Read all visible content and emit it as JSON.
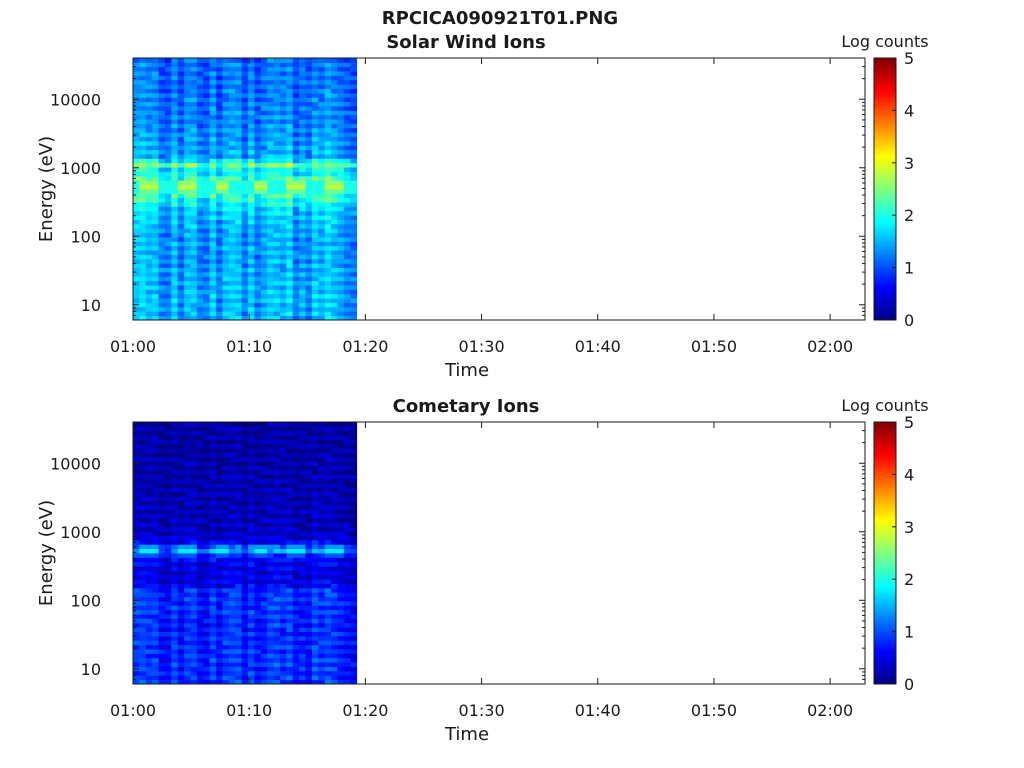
{
  "figure": {
    "title": "RPCICA090921T01.PNG"
  },
  "chart_data": [
    {
      "type": "heatmap",
      "title": "Solar Wind Ions",
      "xlabel": "Time",
      "ylabel": "Energy (eV)",
      "x_ticks": [
        "01:00",
        "01:10",
        "01:20",
        "01:30",
        "01:40",
        "01:50",
        "02:00"
      ],
      "x_range_minutes": [
        0,
        63
      ],
      "data_end_minutes": 19.5,
      "y_scale": "log",
      "y_ticks": [
        10,
        100,
        1000,
        10000
      ],
      "y_range": [
        6,
        40000
      ],
      "colorbar": {
        "label": "Log counts",
        "range": [
          0,
          5
        ],
        "ticks": [
          0,
          1,
          2,
          3,
          4,
          5
        ],
        "colormap": "jet"
      },
      "cycle_starts_minutes": [
        0.4,
        3.6,
        6.8,
        10.0,
        13.2,
        16.4
      ],
      "cycle_columns": [
        1.6,
        1.7,
        1.25,
        1.55,
        1.45,
        1.6,
        1.3,
        1.6,
        1.25,
        1.5
      ],
      "flux_profile": [
        {
          "energy": 6,
          "level": 1.5
        },
        {
          "energy": 10,
          "level": 1.55
        },
        {
          "energy": 30,
          "level": 1.5
        },
        {
          "energy": 100,
          "level": 1.45
        },
        {
          "energy": 250,
          "level": 1.7
        },
        {
          "energy": 420,
          "level": 2.2
        },
        {
          "energy": 550,
          "level": 2.9
        },
        {
          "energy": 700,
          "level": 2.2
        },
        {
          "energy": 900,
          "level": 1.7
        },
        {
          "energy": 1100,
          "level": 2.4
        },
        {
          "energy": 1400,
          "level": 1.5
        },
        {
          "energy": 5000,
          "level": 1.3
        },
        {
          "energy": 40000,
          "level": 1.2
        }
      ]
    },
    {
      "type": "heatmap",
      "title": "Cometary Ions",
      "xlabel": "Time",
      "ylabel": "Energy (eV)",
      "x_ticks": [
        "01:00",
        "01:10",
        "01:20",
        "01:30",
        "01:40",
        "01:50",
        "02:00"
      ],
      "x_range_minutes": [
        0,
        63
      ],
      "data_end_minutes": 19.5,
      "y_scale": "log",
      "y_ticks": [
        10,
        100,
        1000,
        10000
      ],
      "y_range": [
        6,
        40000
      ],
      "colorbar": {
        "label": "Log counts",
        "range": [
          0,
          5
        ],
        "ticks": [
          0,
          1,
          2,
          3,
          4,
          5
        ],
        "colormap": "jet"
      },
      "cycle_starts_minutes": [
        0.4,
        3.6,
        6.8,
        10.0,
        13.2,
        16.4
      ],
      "cycle_columns": [
        1.25,
        1.3,
        0.95,
        1.2,
        1.05,
        1.25,
        0.95,
        1.3,
        0.9,
        1.15
      ],
      "flux_profile": [
        {
          "energy": 6,
          "level": 1.2
        },
        {
          "energy": 10,
          "level": 1.2
        },
        {
          "energy": 30,
          "level": 1.15
        },
        {
          "energy": 140,
          "level": 1.2
        },
        {
          "energy": 170,
          "level": 0.8
        },
        {
          "energy": 300,
          "level": 0.75
        },
        {
          "energy": 450,
          "level": 1.0
        },
        {
          "energy": 550,
          "level": 2.0
        },
        {
          "energy": 650,
          "level": 1.0
        },
        {
          "energy": 900,
          "level": 0.55
        },
        {
          "energy": 3000,
          "level": 0.45
        },
        {
          "energy": 40000,
          "level": 0.35
        }
      ]
    }
  ]
}
